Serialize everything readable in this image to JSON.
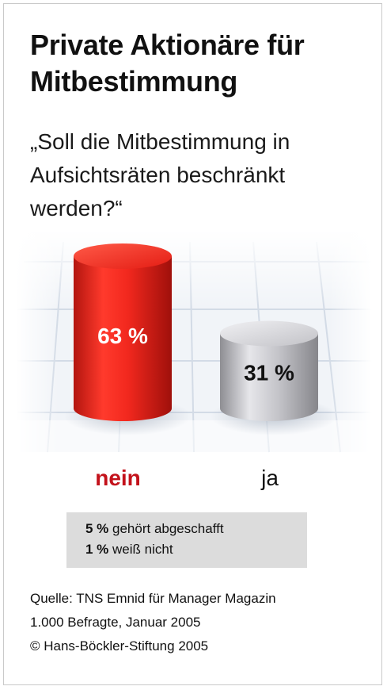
{
  "title_line1": "Private Aktionäre für",
  "title_line2": "Mitbestimmung",
  "question_lines": [
    "„Soll die Mitbestimmung in",
    "Aufsichtsräten beschränkt",
    "werden?“"
  ],
  "colors": {
    "nein": "#e8231b",
    "ja": "#b9b9bd",
    "nein_label": "#c3121b",
    "note_bg": "#dcdcdc"
  },
  "chart_data": {
    "type": "bar",
    "categories": [
      "nein",
      "ja"
    ],
    "values": [
      63,
      31
    ],
    "data_labels": [
      "63 %",
      "31 %"
    ],
    "ylim": [
      0,
      63
    ]
  },
  "notes": [
    {
      "value": "5 %",
      "text": " gehört abgeschafft"
    },
    {
      "value": "1 %",
      "text": " weiß nicht"
    }
  ],
  "source_lines": [
    "Quelle: TNS Emnid für Manager Magazin",
    "1.000 Befragte, Januar 2005",
    "© Hans-Böckler-Stiftung 2005"
  ]
}
